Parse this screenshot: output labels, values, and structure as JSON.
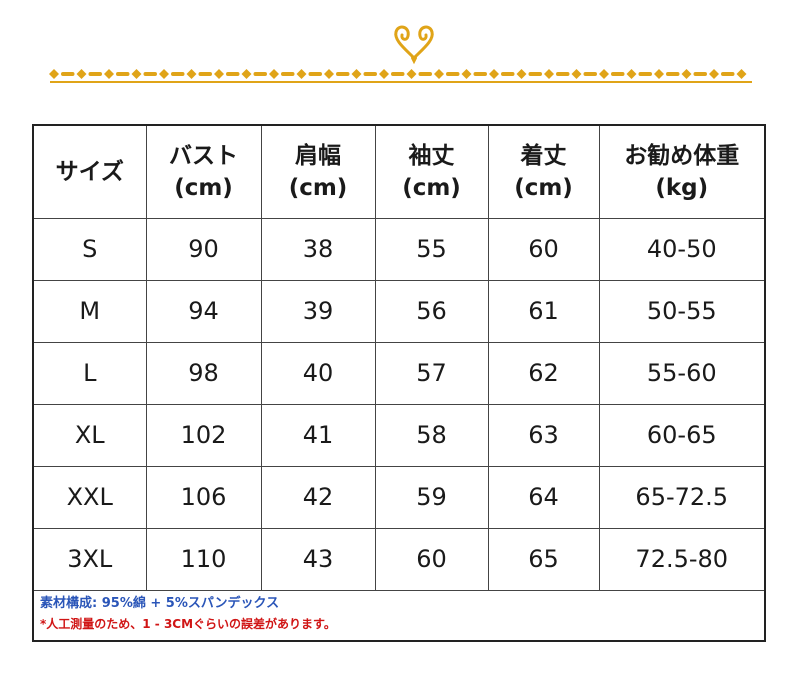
{
  "colors": {
    "gold": "#e0a418",
    "border": "#222222",
    "material_text": "#2a55b8",
    "warning_text": "#d01515"
  },
  "ornament": {
    "icon": "heart-flourish-icon"
  },
  "table": {
    "headers": [
      {
        "line1": "サイズ",
        "line2": ""
      },
      {
        "line1": "バスト",
        "line2": "(cm)"
      },
      {
        "line1": "肩幅",
        "line2": "(cm)"
      },
      {
        "line1": "袖丈",
        "line2": "(cm)"
      },
      {
        "line1": "着丈",
        "line2": "(cm)"
      },
      {
        "line1": "お勧め体重",
        "line2": "(kg)"
      }
    ],
    "rows": [
      [
        "S",
        "90",
        "38",
        "55",
        "60",
        "40-50"
      ],
      [
        "M",
        "94",
        "39",
        "56",
        "61",
        "50-55"
      ],
      [
        "L",
        "98",
        "40",
        "57",
        "62",
        "55-60"
      ],
      [
        "XL",
        "102",
        "41",
        "58",
        "63",
        "60-65"
      ],
      [
        "XXL",
        "106",
        "42",
        "59",
        "64",
        "65-72.5"
      ],
      [
        "3XL",
        "110",
        "43",
        "60",
        "65",
        "72.5-80"
      ]
    ]
  },
  "notes": {
    "material": "素材構成: 95%綿 + 5%スパンデックス",
    "measurement": "*人工測量のため、1 - 3CMぐらいの誤差があります。"
  }
}
